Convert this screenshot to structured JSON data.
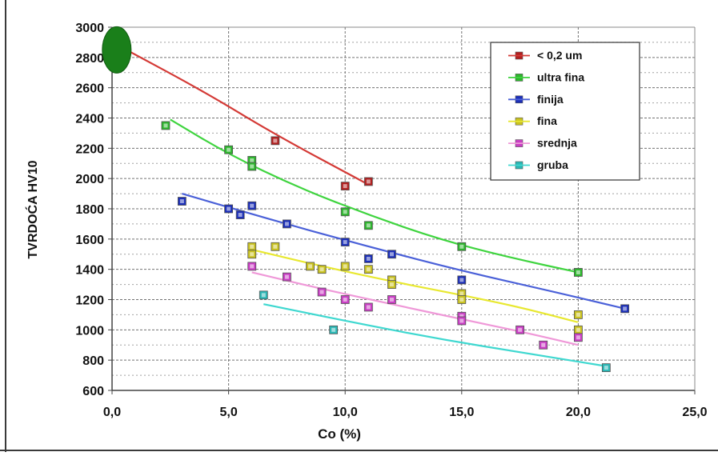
{
  "chart_data": {
    "type": "scatter",
    "xlabel": "Co (%)",
    "ylabel": "TVRDOĆA HV10",
    "xlim": [
      0,
      25
    ],
    "ylim": [
      600,
      3000
    ],
    "xticks": [
      0,
      5,
      10,
      15,
      20,
      25
    ],
    "xtick_labels": [
      "0,0",
      "5,0",
      "10,0",
      "15,0",
      "20,0",
      "25,0"
    ],
    "yticks": [
      600,
      800,
      1000,
      1200,
      1400,
      1600,
      1800,
      2000,
      2200,
      2400,
      2600,
      2800,
      3000
    ],
    "ytick_labels": [
      "600",
      "800",
      "1000",
      "1200",
      "1400",
      "1600",
      "1800",
      "2000",
      "2200",
      "2400",
      "2600",
      "2800",
      "3000"
    ],
    "grid": true,
    "legend": "top-right",
    "highlight": {
      "x": 0.2,
      "y": 2850,
      "color": "#1a7f1a"
    },
    "series": [
      {
        "name": "< 0,2 um",
        "color": "#d43a36",
        "marker": "#b11f1f",
        "points": [
          [
            7,
            2250
          ],
          [
            10,
            1950
          ],
          [
            11,
            1980
          ]
        ],
        "trend": [
          [
            0.5,
            2860
          ],
          [
            4,
            2570
          ],
          [
            7,
            2290
          ],
          [
            11,
            1960
          ]
        ]
      },
      {
        "name": "ultra fina",
        "color": "#3fd43f",
        "marker": "#2db52d",
        "points": [
          [
            2.3,
            2350
          ],
          [
            5,
            2190
          ],
          [
            6,
            2120
          ],
          [
            6,
            2080
          ],
          [
            10,
            1780
          ],
          [
            11,
            1690
          ],
          [
            15,
            1550
          ],
          [
            20,
            1380
          ]
        ],
        "trend": [
          [
            2.5,
            2390
          ],
          [
            5,
            2160
          ],
          [
            8,
            1940
          ],
          [
            11,
            1760
          ],
          [
            14,
            1600
          ],
          [
            17,
            1480
          ],
          [
            20,
            1380
          ]
        ]
      },
      {
        "name": "finija",
        "color": "#4a60d8",
        "marker": "#1c2fb8",
        "points": [
          [
            3,
            1850
          ],
          [
            5,
            1800
          ],
          [
            5.5,
            1760
          ],
          [
            6,
            1820
          ],
          [
            7.5,
            1700
          ],
          [
            10,
            1580
          ],
          [
            11,
            1470
          ],
          [
            12,
            1500
          ],
          [
            15,
            1330
          ],
          [
            22,
            1140
          ]
        ],
        "trend": [
          [
            3,
            1900
          ],
          [
            7,
            1720
          ],
          [
            11,
            1550
          ],
          [
            15,
            1390
          ],
          [
            19,
            1250
          ],
          [
            22,
            1140
          ]
        ]
      },
      {
        "name": "fina",
        "color": "#e8e830",
        "marker": "#c9c220",
        "points": [
          [
            6,
            1550
          ],
          [
            6,
            1500
          ],
          [
            7,
            1550
          ],
          [
            8.5,
            1420
          ],
          [
            9,
            1400
          ],
          [
            10,
            1420
          ],
          [
            11,
            1400
          ],
          [
            12,
            1330
          ],
          [
            12,
            1300
          ],
          [
            15,
            1240
          ],
          [
            15,
            1200
          ],
          [
            20,
            1100
          ],
          [
            20,
            1000
          ]
        ],
        "trend": [
          [
            6,
            1530
          ],
          [
            9,
            1420
          ],
          [
            12,
            1320
          ],
          [
            15,
            1230
          ],
          [
            17.5,
            1150
          ],
          [
            20,
            1050
          ]
        ]
      },
      {
        "name": "srednja",
        "color": "#ef98d8",
        "marker": "#c93ec4",
        "points": [
          [
            6,
            1420
          ],
          [
            7.5,
            1350
          ],
          [
            9,
            1250
          ],
          [
            10,
            1200
          ],
          [
            11,
            1150
          ],
          [
            12,
            1200
          ],
          [
            15,
            1090
          ],
          [
            15,
            1060
          ],
          [
            17.5,
            1000
          ],
          [
            18.5,
            900
          ],
          [
            20,
            950
          ]
        ],
        "trend": [
          [
            6,
            1380
          ],
          [
            9,
            1270
          ],
          [
            12,
            1170
          ],
          [
            15,
            1070
          ],
          [
            17.5,
            990
          ],
          [
            20,
            900
          ]
        ]
      },
      {
        "name": "gruba",
        "color": "#3fd8d0",
        "marker": "#2ab7b5",
        "points": [
          [
            6.5,
            1230
          ],
          [
            9.5,
            1000
          ],
          [
            21.2,
            750
          ]
        ],
        "trend": [
          [
            6.5,
            1170
          ],
          [
            10,
            1060
          ],
          [
            14,
            940
          ],
          [
            18,
            840
          ],
          [
            21.2,
            760
          ]
        ]
      }
    ]
  }
}
